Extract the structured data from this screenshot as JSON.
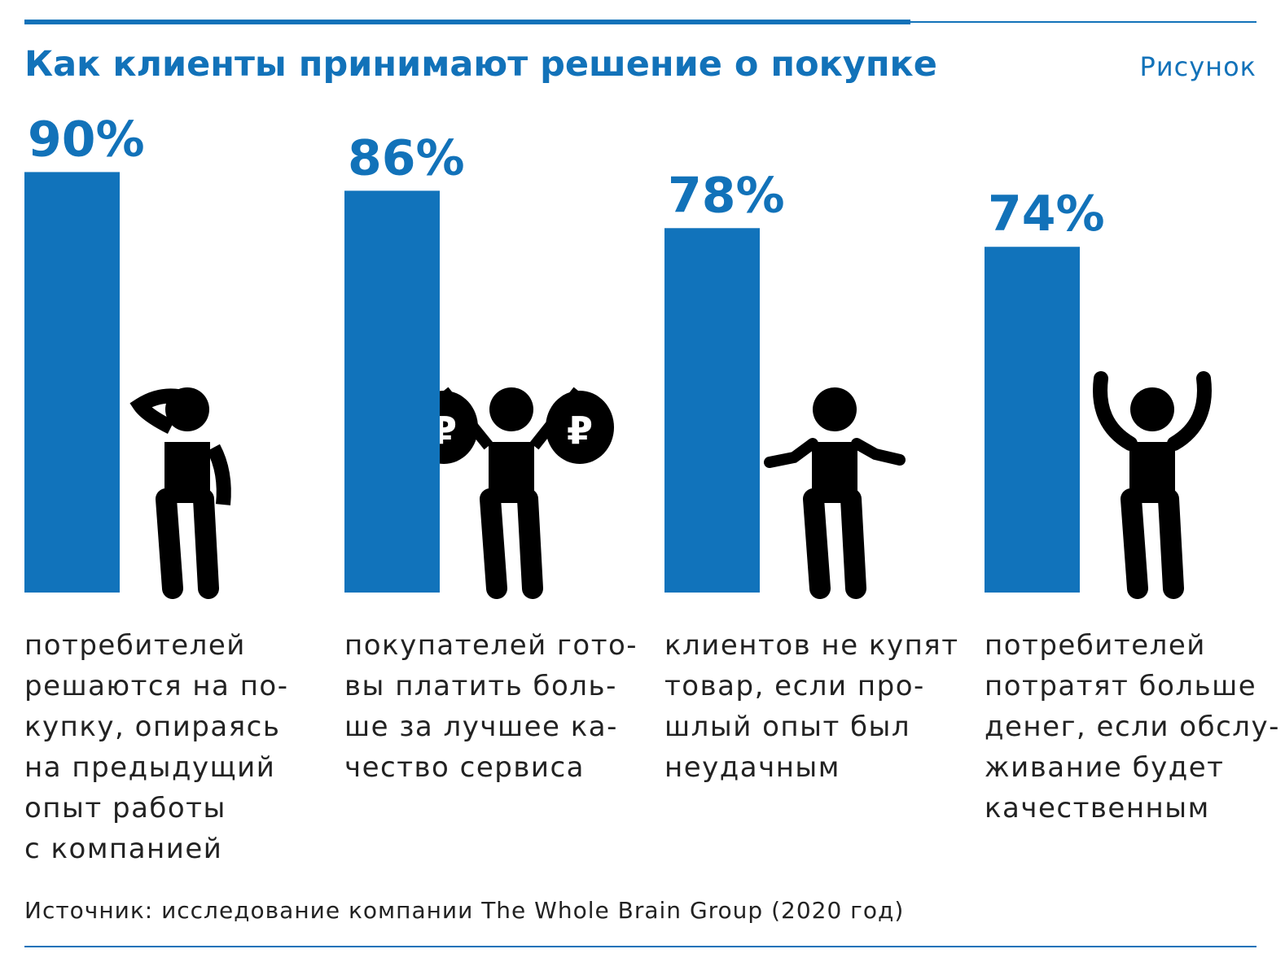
{
  "chart_data": {
    "type": "bar",
    "title": "Как клиенты принимают решение о покупке",
    "label": "Рисунок",
    "values": [
      90,
      86,
      78,
      74
    ],
    "value_labels": [
      "90%",
      "86%",
      "78%",
      "74%"
    ],
    "descriptions": [
      [
        "потребителей",
        "решаются на по-",
        "купку, опираясь",
        "на предыдущий",
        "опыт работы",
        "с компанией"
      ],
      [
        "покупателей гото-",
        "вы платить боль-",
        "ше за лучшее ка-",
        "чество сервиса"
      ],
      [
        "клиентов не купят",
        "товар, если про-",
        "шлый опыт был",
        "неудачным"
      ],
      [
        "потребителей",
        "потратят больше",
        "денег, если обслу-",
        "живание будет",
        "качественным"
      ]
    ],
    "color": "#1173bb",
    "ylim": [
      0,
      100
    ],
    "source": "Источник: исследование компании The Whole Brain Group (2020 год)"
  }
}
